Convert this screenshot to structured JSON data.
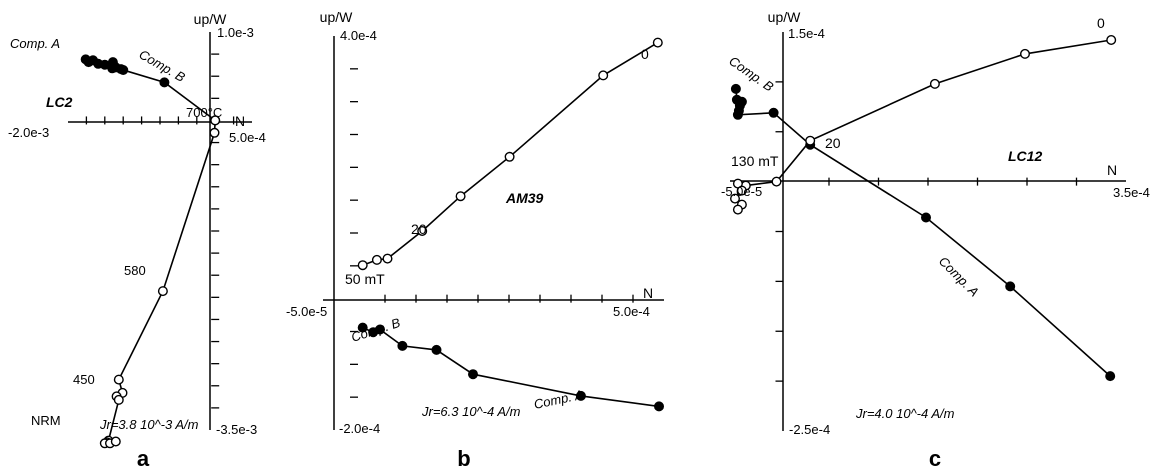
{
  "chart_data": [
    {
      "type": "scatter",
      "plot_kind": "orthogonal vector projection",
      "panel_label": "a",
      "specimen": "LC2",
      "intensity_label": "Jr=3.8 10^-3 A/m",
      "axes": {
        "vertical_label": "up/W",
        "horizontal_label": "N",
        "x_left_label": "-2.0e-3",
        "x_right_label": "5.0e-4",
        "y_top_label": "1.0e-3",
        "y_bottom_label": "-3.5e-3",
        "xlim": [
          -0.002,
          0.0005
        ],
        "ylim": [
          -0.0035,
          0.001
        ],
        "ticks_x": [
          -0.00175,
          -0.0015,
          -0.00125,
          -0.001,
          -0.00075,
          -0.0005,
          -0.00025,
          0.00025
        ],
        "ticks_y": [
          0.00075,
          0.0005,
          0.00025,
          -0.00025,
          -0.0005,
          -0.00075,
          -0.001,
          -0.00125,
          -0.0015,
          -0.00175,
          -0.002,
          -0.00225,
          -0.0025,
          -0.00275,
          -0.003,
          -0.00325
        ]
      },
      "series": [
        {
          "marker": "filled",
          "points": [
            [
              -0.00176,
              0.00069
            ],
            [
              -0.00172,
              0.00066
            ],
            [
              -0.00166,
              0.00068
            ],
            [
              -0.00159,
              0.00064
            ],
            [
              -0.0015,
              0.00063
            ],
            [
              -0.00139,
              0.00066
            ],
            [
              -0.0014,
              0.00059
            ],
            [
              -0.00135,
              0.0006
            ],
            [
              -0.00128,
              0.00058
            ],
            [
              -0.00125,
              0.00057
            ],
            [
              -0.00069,
              0.00043
            ],
            [
              0.0,
              0.0
            ]
          ]
        },
        {
          "marker": "open",
          "points": [
            [
              0.0,
              0.0
            ],
            [
              -1e-05,
              -0.00014
            ],
            [
              -0.00071,
              -0.00193
            ],
            [
              -0.00131,
              -0.00293
            ],
            [
              -0.00126,
              -0.00308
            ],
            [
              -0.00134,
              -0.00312
            ],
            [
              -0.00131,
              -0.00316
            ],
            [
              -0.00145,
              -0.00362
            ],
            [
              -0.00147,
              -0.00364
            ],
            [
              -0.0015,
              -0.00365
            ],
            [
              -0.00143,
              -0.00365
            ],
            [
              -0.00135,
              -0.00363
            ]
          ]
        }
      ],
      "annotations": [
        "Comp. A",
        "Comp. B",
        "700°C",
        "580",
        "450",
        "NRM"
      ]
    },
    {
      "type": "scatter",
      "plot_kind": "orthogonal vector projection",
      "panel_label": "b",
      "specimen": "AM39",
      "intensity_label": "Jr=6.3 10^-4 A/m",
      "axes": {
        "vertical_label": "up/W",
        "horizontal_label": "N",
        "x_left_label": "-5.0e-5",
        "x_right_label": "5.0e-4",
        "y_top_label": "4.0e-4",
        "y_bottom_label": "-2.0e-4",
        "xlim": [
          -5e-05,
          0.0005
        ],
        "ylim": [
          -0.0002,
          0.0004
        ],
        "ticks_x": [
          5e-05,
          0.0001,
          0.00015,
          0.0002,
          0.00025,
          0.0003,
          0.00035,
          0.0004,
          0.00045
        ],
        "ticks_y": [
          0.00035,
          0.0003,
          0.00025,
          0.0002,
          0.00015,
          0.0001,
          5e-05,
          -5e-05,
          -0.0001,
          -0.00015
        ]
      },
      "series": [
        {
          "marker": "open",
          "points": [
            [
              0.00049,
              0.00039
            ],
            [
              0.000402,
              0.00034
            ],
            [
              0.000251,
              0.000216
            ],
            [
              0.000172,
              0.000156
            ],
            [
              0.00011,
              0.000103
            ],
            [
              5.4e-05,
              6.1e-05
            ],
            [
              3.7e-05,
              5.9e-05
            ],
            [
              1.4e-05,
              5.1e-05
            ]
          ]
        },
        {
          "marker": "filled",
          "points": [
            [
              1.4e-05,
              -4.4e-05
            ],
            [
              3.1e-05,
              -5.1e-05
            ],
            [
              4.2e-05,
              -4.7e-05
            ],
            [
              7.8e-05,
              -7.2e-05
            ],
            [
              0.000133,
              -7.8e-05
            ],
            [
              0.000192,
              -0.000115
            ],
            [
              0.000366,
              -0.000148
            ],
            [
              0.000492,
              -0.000164
            ]
          ]
        }
      ],
      "annotations": [
        "0",
        "20",
        "50 mT",
        "Comp. B",
        "Comp. A"
      ]
    },
    {
      "type": "scatter",
      "plot_kind": "orthogonal vector projection",
      "panel_label": "c",
      "specimen": "LC12",
      "intensity_label": "Jr=4.0 10^-4 A/m",
      "axes": {
        "vertical_label": "up/W",
        "horizontal_label": "N",
        "x_left_label": "-5.0e-5",
        "x_right_label": "3.5e-4",
        "y_top_label": "1.5e-4",
        "y_bottom_label": "-2.5e-4",
        "xlim": [
          -5e-05,
          0.00035
        ],
        "ylim": [
          -0.00025,
          0.00015
        ],
        "ticks_x": [
          5e-05,
          0.0001,
          0.00015,
          0.0002,
          0.00025,
          0.0003
        ],
        "ticks_y": [
          0.0001,
          5e-05,
          -5e-05,
          -0.0001,
          -0.00015,
          -0.0002
        ]
      },
      "series": [
        {
          "marker": "open",
          "points": [
            [
              0.000335,
              0.000142
            ],
            [
              0.000248,
              0.000128
            ],
            [
              0.000157,
              9.8e-05
            ],
            [
              3.1e-05,
              4.1e-05
            ],
            [
              -3e-06,
              0.0
            ],
            [
              -3.4e-05,
              -4e-06
            ],
            [
              -4.2e-05,
              -2e-06
            ],
            [
              -3.8e-05,
              -9e-06
            ],
            [
              -4.5e-05,
              -1.7e-05
            ],
            [
              -3.8e-05,
              -2.3e-05
            ],
            [
              -4.2e-05,
              -2.8e-05
            ]
          ]
        },
        {
          "marker": "filled",
          "points": [
            [
              -4.4e-05,
              9.3e-05
            ],
            [
              -4.3e-05,
              8.2e-05
            ],
            [
              -4e-05,
              7.6e-05
            ],
            [
              -3.8e-05,
              8e-05
            ],
            [
              -4.1e-05,
              7.1e-05
            ],
            [
              -4.2e-05,
              6.7e-05
            ],
            [
              -6e-06,
              6.9e-05
            ],
            [
              3.1e-05,
              3.7e-05
            ],
            [
              0.000148,
              -3.6e-05
            ],
            [
              0.000233,
              -0.000105
            ],
            [
              0.000334,
              -0.000195
            ]
          ]
        }
      ],
      "annotations": [
        "0",
        "20",
        "130 mT",
        "Comp. B",
        "Comp. A"
      ]
    }
  ]
}
